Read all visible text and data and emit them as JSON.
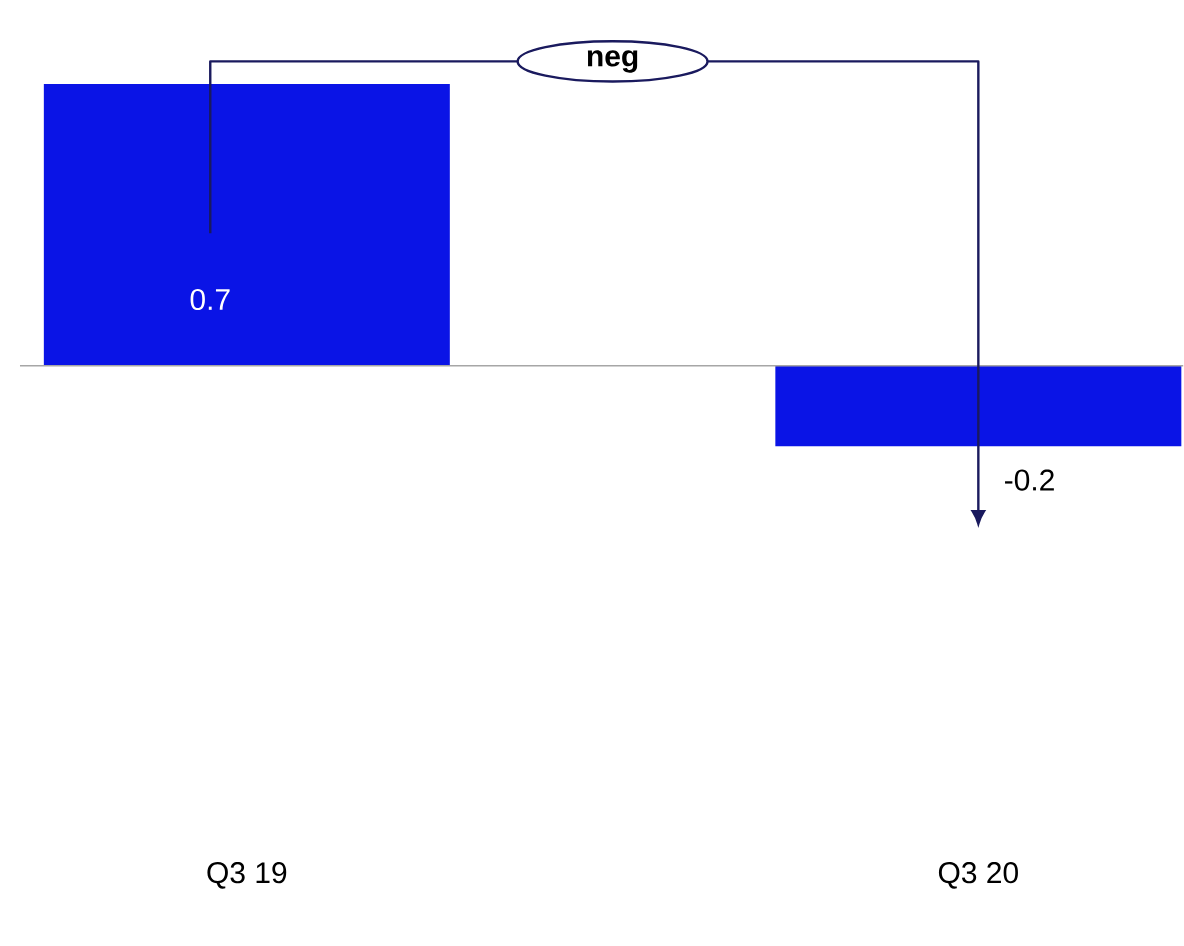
{
  "chart_data": {
    "type": "bar",
    "categories": [
      "Q3 19",
      "Q3 20"
    ],
    "values": [
      0.7,
      -0.2
    ],
    "color": "#0a14e6",
    "data_labels": true,
    "annotations": [
      "neg"
    ]
  }
}
